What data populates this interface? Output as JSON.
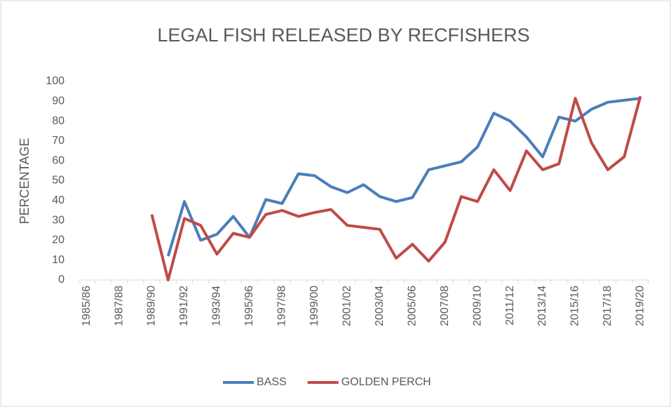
{
  "chart_data": {
    "type": "line",
    "title": "LEGAL FISH RELEASED BY RECFISHERS",
    "y_label": "PERCENTAGE",
    "categories": [
      "1985/86",
      null,
      "1987/88",
      null,
      "1989/90",
      null,
      "1991/92",
      null,
      "1993/94",
      null,
      "1995/96",
      null,
      "1997/98",
      null,
      "1999/00",
      null,
      "2001/02",
      null,
      "2003/04",
      null,
      "2005/06",
      null,
      "2007/08",
      null,
      "2009/10",
      null,
      "2011/12",
      null,
      "2013/14",
      null,
      "2015/16",
      null,
      "2017/18",
      null,
      "2019/20"
    ],
    "series": [
      {
        "name": "BASS",
        "color": "#4a7ebb",
        "values": [
          null,
          null,
          null,
          null,
          null,
          12,
          39.5,
          20,
          23,
          32,
          21.5,
          40.5,
          38.5,
          53.5,
          52.5,
          47,
          44,
          48,
          42,
          39.5,
          41.5,
          55.5,
          57.5,
          59.5,
          67,
          84,
          80,
          72,
          62,
          82,
          80,
          86,
          89.5,
          90.5,
          91.5
        ]
      },
      {
        "name": "GOLDEN PERCH",
        "color": "#be4b48",
        "values": [
          null,
          null,
          null,
          null,
          33,
          0,
          31,
          27.5,
          13,
          23.5,
          21.5,
          33,
          35,
          32,
          34,
          35.5,
          27.5,
          26.5,
          25.5,
          11,
          18,
          9.5,
          19,
          42,
          39.5,
          55.5,
          45,
          65,
          55.5,
          58.5,
          91.5,
          69,
          55.5,
          62,
          92.5
        ]
      }
    ],
    "ylim": [
      0,
      100
    ],
    "yticks": [
      0,
      10,
      20,
      30,
      40,
      50,
      60,
      70,
      80,
      90,
      100
    ],
    "grid": false,
    "legend": "bottom"
  }
}
